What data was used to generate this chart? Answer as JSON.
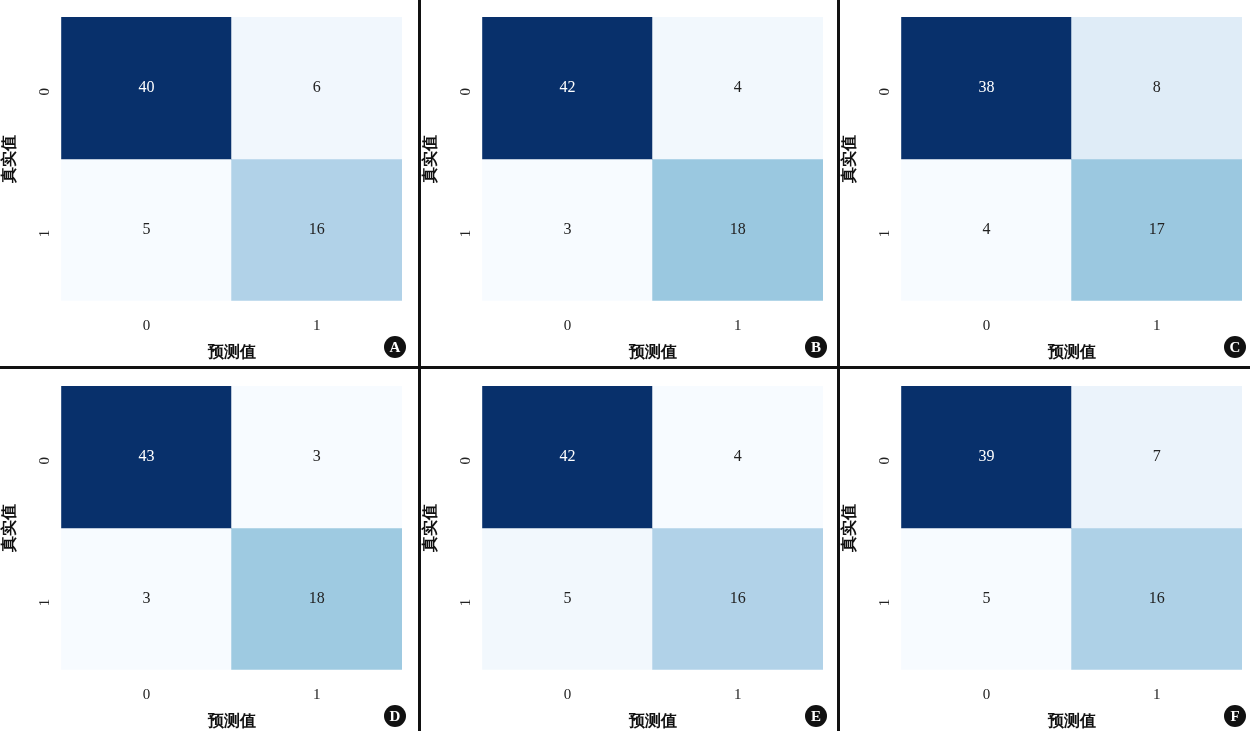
{
  "chart_data": [
    {
      "type": "heatmap",
      "categories": [
        "0",
        "1"
      ],
      "y_categories": [
        "0",
        "1"
      ],
      "cells": [
        [
          40,
          6
        ],
        [
          5,
          16
        ]
      ],
      "data_labels": true,
      "xlabel": "预测值",
      "ylabel": "真实值",
      "annotations": [
        "A"
      ]
    },
    {
      "type": "heatmap",
      "categories": [
        "0",
        "1"
      ],
      "y_categories": [
        "0",
        "1"
      ],
      "cells": [
        [
          42,
          4
        ],
        [
          3,
          18
        ]
      ],
      "data_labels": true,
      "xlabel": "预测值",
      "ylabel": "真实值",
      "annotations": [
        "B"
      ]
    },
    {
      "type": "heatmap",
      "categories": [
        "0",
        "1"
      ],
      "y_categories": [
        "0",
        "1"
      ],
      "cells": [
        [
          38,
          8
        ],
        [
          4,
          17
        ]
      ],
      "data_labels": true,
      "xlabel": "预测值",
      "ylabel": "真实值",
      "annotations": [
        "C"
      ]
    },
    {
      "type": "heatmap",
      "categories": [
        "0",
        "1"
      ],
      "y_categories": [
        "0",
        "1"
      ],
      "cells": [
        [
          43,
          3
        ],
        [
          3,
          18
        ]
      ],
      "data_labels": true,
      "xlabel": "预测值",
      "ylabel": "真实值",
      "annotations": [
        "D"
      ]
    },
    {
      "type": "heatmap",
      "categories": [
        "0",
        "1"
      ],
      "y_categories": [
        "0",
        "1"
      ],
      "cells": [
        [
          42,
          4
        ],
        [
          5,
          16
        ]
      ],
      "data_labels": true,
      "xlabel": "预测值",
      "ylabel": "真实值",
      "annotations": [
        "E"
      ]
    },
    {
      "type": "heatmap",
      "categories": [
        "0",
        "1"
      ],
      "y_categories": [
        "0",
        "1"
      ],
      "cells": [
        [
          39,
          7
        ],
        [
          5,
          16
        ]
      ],
      "data_labels": true,
      "xlabel": "预测值",
      "ylabel": "真实值",
      "annotations": [
        "F"
      ]
    }
  ]
}
